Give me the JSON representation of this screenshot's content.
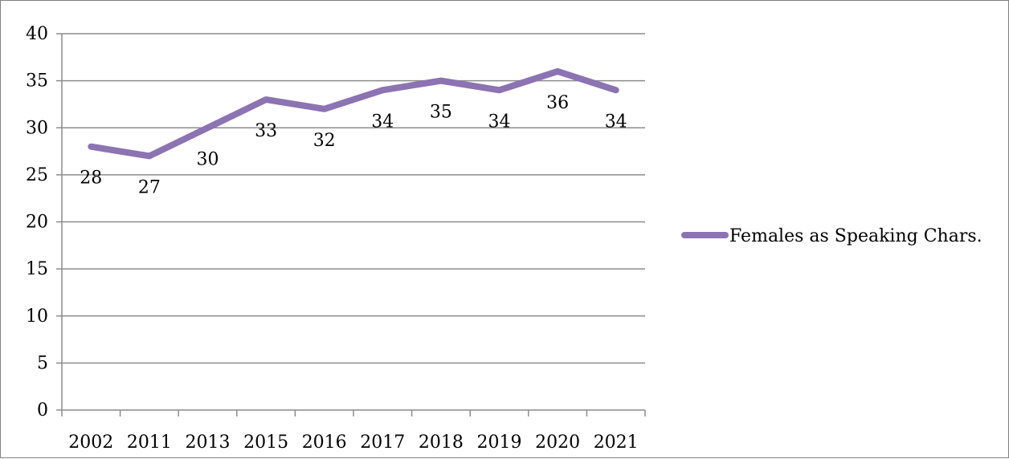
{
  "chart_data": {
    "type": "line",
    "title": "",
    "xlabel": "",
    "ylabel": "",
    "categories": [
      "2002",
      "2011",
      "2013",
      "2015",
      "2016",
      "2017",
      "2018",
      "2019",
      "2020",
      "2021"
    ],
    "series": [
      {
        "name": "Females as Speaking Chars.",
        "values": [
          28,
          27,
          30,
          33,
          32,
          34,
          35,
          34,
          36,
          34
        ],
        "color": "#8c73b2"
      }
    ],
    "ylim": [
      0,
      40
    ],
    "yticks": [
      0,
      5,
      10,
      15,
      20,
      25,
      30,
      35,
      40
    ],
    "grid": true,
    "data_labels": true,
    "legend_position": "right"
  },
  "colors": {
    "gridline": "#8c8c8c",
    "axis": "#8c8c8c",
    "frame": "#7f7f7f"
  }
}
